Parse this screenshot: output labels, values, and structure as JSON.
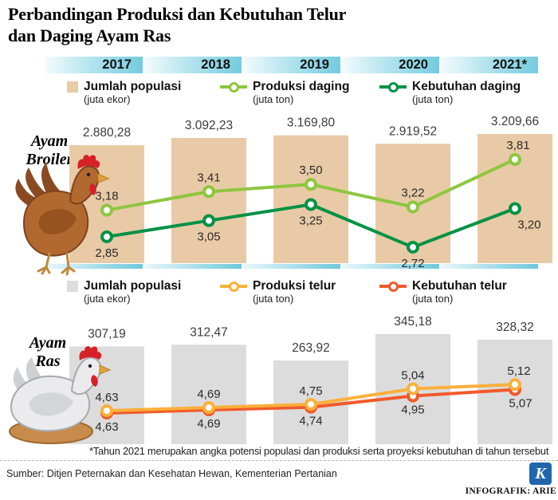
{
  "title": {
    "line1": "Perbandingan Produksi dan Kebutuhan Telur",
    "line2": "dan Daging Ayam Ras"
  },
  "years": [
    "2017",
    "2018",
    "2019",
    "2020",
    "2021*"
  ],
  "section_labels": {
    "broiler": {
      "line1": "Ayam",
      "line2": "Broiler"
    },
    "ras": {
      "line1": "Ayam",
      "line2": "Ras"
    }
  },
  "legend_top": [
    {
      "label": "Jumlah populasi",
      "unit": "(juta ekor)",
      "swatch": "square",
      "color": "#e9caa6"
    },
    {
      "label": "Produksi daging",
      "unit": "(juta ton)",
      "swatch": "line",
      "color": "#8dc63f"
    },
    {
      "label": "Kebutuhan daging",
      "unit": "(juta ton)",
      "swatch": "line",
      "color": "#009245"
    }
  ],
  "legend_bottom": [
    {
      "label": "Jumlah populasi",
      "unit": "(juta ekor)",
      "swatch": "square",
      "color": "#dcdcdd"
    },
    {
      "label": "Produksi telur",
      "unit": "(juta ton)",
      "swatch": "line",
      "color": "#fbb03b"
    },
    {
      "label": "Kebutuhan telur",
      "unit": "(juta ton)",
      "swatch": "line",
      "color": "#f15a29"
    }
  ],
  "chart_data": [
    {
      "type": "bar+line",
      "section": "Ayam Broiler",
      "categories": [
        "2017",
        "2018",
        "2019",
        "2020",
        "2021*"
      ],
      "series": [
        {
          "name": "Jumlah populasi",
          "unit": "juta ekor",
          "type": "bar",
          "color": "#e9caa6",
          "values": [
            2880.28,
            3092.23,
            3169.8,
            2919.52,
            3209.66
          ],
          "labels": [
            "2.880,28",
            "3.092,23",
            "3.169,80",
            "2.919,52",
            "3.209,66"
          ]
        },
        {
          "name": "Produksi daging",
          "unit": "juta ton",
          "type": "line",
          "color": "#8dc63f",
          "values": [
            3.18,
            3.41,
            3.5,
            3.22,
            3.81
          ],
          "labels": [
            "3,18",
            "3,41",
            "3,50",
            "3,22",
            "3,81"
          ]
        },
        {
          "name": "Kebutuhan daging",
          "unit": "juta ton",
          "type": "line",
          "color": "#009245",
          "values": [
            2.85,
            3.05,
            3.25,
            2.72,
            3.2
          ],
          "labels": [
            "2,85",
            "3,05",
            "3,25",
            "2,72",
            "3,20"
          ]
        }
      ],
      "legend_position": "top",
      "grid": false
    },
    {
      "type": "bar+line",
      "section": "Ayam Ras",
      "categories": [
        "2017",
        "2018",
        "2019",
        "2020",
        "2021*"
      ],
      "series": [
        {
          "name": "Jumlah populasi",
          "unit": "juta ekor",
          "type": "bar",
          "color": "#dcdcdd",
          "values": [
            307.19,
            312.47,
            263.92,
            345.18,
            328.32
          ],
          "labels": [
            "307,19",
            "312,47",
            "263,92",
            "345,18",
            "328,32"
          ]
        },
        {
          "name": "Produksi telur",
          "unit": "juta ton",
          "type": "line",
          "color": "#fbb03b",
          "values": [
            4.63,
            4.69,
            4.75,
            5.04,
            5.12
          ],
          "labels": [
            "4,63",
            "4,69",
            "4,75",
            "5,04",
            "5,12"
          ]
        },
        {
          "name": "Kebutuhan telur",
          "unit": "juta ton",
          "type": "line",
          "color": "#f15a29",
          "values": [
            4.63,
            4.69,
            4.74,
            4.95,
            5.07
          ],
          "labels": [
            "4,63",
            "4,69",
            "4,74",
            "4,95",
            "5,07"
          ]
        }
      ],
      "legend_position": "top",
      "grid": false
    }
  ],
  "footnote": "*Tahun 2021 merupakan angka potensi populasi dan produksi serta proyeksi kebutuhan di tahun tersebut",
  "source": "Sumber: Ditjen Peternakan dan Kesehatan Hewan, Kementerian Pertanian",
  "credit": "INFOGRAFIK: ARIE",
  "logo_letter": "K",
  "colors": {
    "year_header_gradient_from": "#f2fbfd",
    "year_header_gradient_to": "#74cbdf",
    "population_broiler_bar": "#e9caa6",
    "population_ras_bar": "#dcdcdd",
    "produksi_daging_line": "#8dc63f",
    "kebutuhan_daging_line": "#009245",
    "produksi_telur_line": "#fbb03b",
    "kebutuhan_telur_line": "#f15a29",
    "logo_blue": "#2166ad"
  }
}
